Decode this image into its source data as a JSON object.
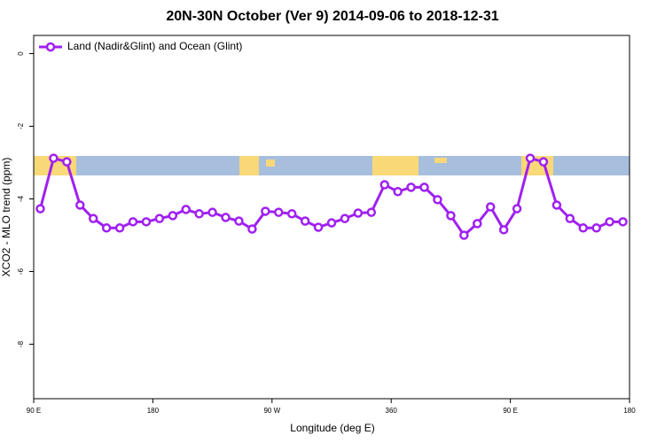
{
  "chart_data": {
    "type": "line",
    "title": "20N-30N October (Ver 9)   2014-09-06 to 2018-12-31",
    "x_label": "Longitude (deg E)",
    "y_label": "XCO2 - MLO trend (ppm)",
    "x": [
      95,
      105,
      115,
      125,
      135,
      145,
      155,
      165,
      175,
      185,
      195,
      205,
      215,
      225,
      235,
      245,
      255,
      265,
      275,
      285,
      295,
      305,
      315,
      325,
      335,
      345,
      355,
      365,
      375,
      385,
      395,
      405,
      415,
      425,
      435,
      445,
      455,
      465,
      475,
      485,
      495,
      505,
      515,
      525,
      535
    ],
    "series": [
      {
        "name": "Land (Nadir&Glint) and Ocean (Glint)",
        "color": "#a020f0",
        "values": [
          -4.27,
          -2.88,
          -2.98,
          -4.17,
          -4.54,
          -4.8,
          -4.8,
          -4.63,
          -4.63,
          -4.54,
          -4.46,
          -4.29,
          -4.41,
          -4.37,
          -4.51,
          -4.61,
          -4.83,
          -4.34,
          -4.37,
          -4.41,
          -4.61,
          -4.78,
          -4.66,
          -4.54,
          -4.39,
          -4.37,
          -3.61,
          -3.8,
          -3.68,
          -3.68,
          -4.02,
          -4.46,
          -5.0,
          -4.68,
          -4.22,
          -4.85,
          -4.27,
          -2.88,
          -2.98,
          -4.17,
          -4.54,
          -4.8,
          -4.8,
          -4.63,
          -4.63
        ]
      }
    ],
    "xlim": [
      90,
      540
    ],
    "xticks": [
      {
        "value": 90,
        "label": "90 E"
      },
      180,
      {
        "value": 270,
        "label": "90 W"
      },
      360,
      {
        "value": 450,
        "label": "90 E"
      },
      {
        "value": 540,
        "label": "180"
      }
    ],
    "ylim": [
      -9.5,
      0.5
    ],
    "yticks": [
      0,
      -2,
      -4,
      -6,
      -8
    ],
    "legend": "top-left"
  }
}
